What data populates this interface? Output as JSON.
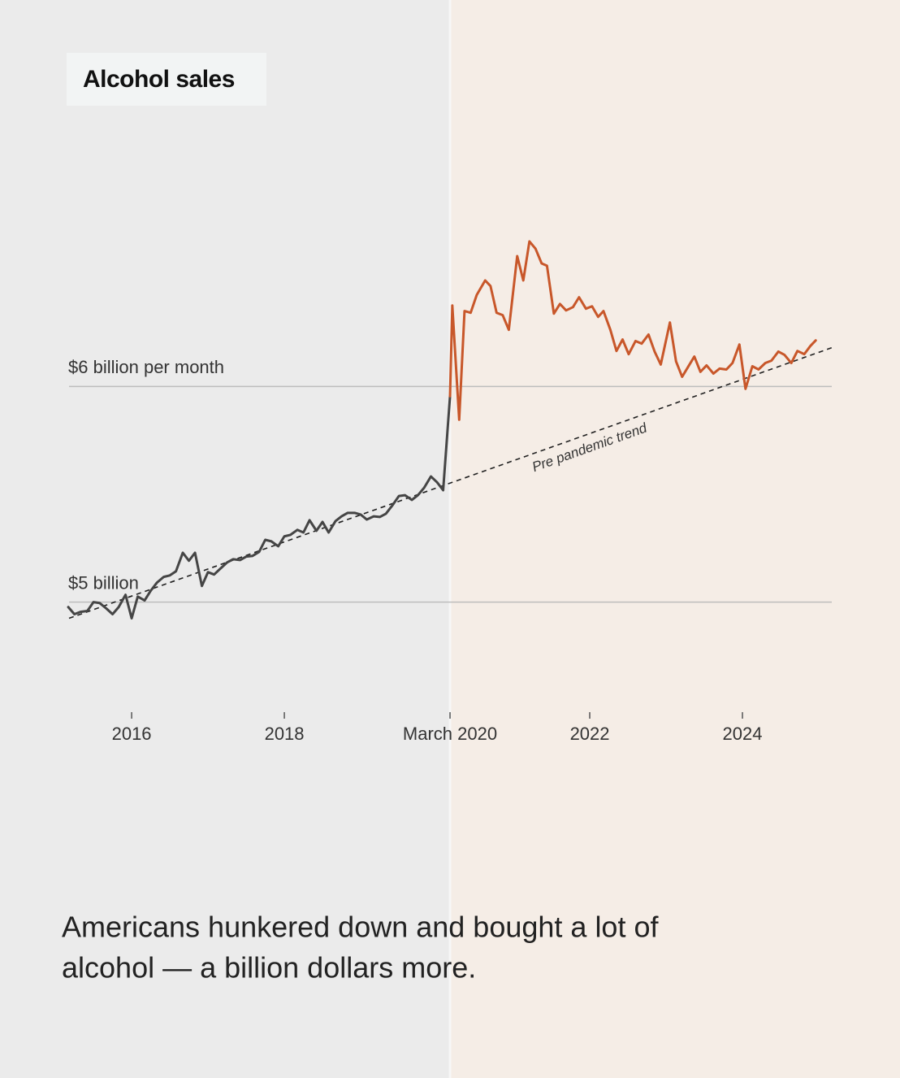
{
  "chart_data": {
    "type": "line",
    "title": "Alcohol sales",
    "caption_lines": [
      "Americans hunkered down and bought a lot of",
      "alcohol — a billion dollars more."
    ],
    "xlim": [
      2015.18,
      2025.17
    ],
    "ylim": [
      4.55,
      6.85
    ],
    "xticks": [
      2016,
      2018,
      {
        "value": 2020.17,
        "label": "March 2020"
      },
      2022,
      2024
    ],
    "yticks": [
      {
        "value": 5,
        "label": "$5 billion"
      },
      {
        "value": 6,
        "label": "$6 billion per month"
      }
    ],
    "grid": true,
    "background": "#ebebeb",
    "shade_color": "#f5ede6",
    "series": [
      {
        "color": "#454545",
        "x": [
          2015.17,
          2015.25,
          2015.33,
          2015.42,
          2015.5,
          2015.58,
          2015.67,
          2015.75,
          2015.83,
          2015.92,
          2016,
          2016.08,
          2016.17,
          2016.25,
          2016.33,
          2016.42,
          2016.5,
          2016.58,
          2016.67,
          2016.75,
          2016.83,
          2016.92,
          2017,
          2017.08,
          2017.17,
          2017.25,
          2017.33,
          2017.42,
          2017.5,
          2017.58,
          2017.67,
          2017.75,
          2017.83,
          2017.92,
          2018,
          2018.08,
          2018.17,
          2018.25,
          2018.33,
          2018.42,
          2018.5,
          2018.58,
          2018.67,
          2018.75,
          2018.83,
          2018.92,
          2019,
          2019.08,
          2019.17,
          2019.25,
          2019.33,
          2019.42,
          2019.5,
          2019.58,
          2019.67,
          2019.75,
          2019.83,
          2019.92,
          2020,
          2020.08,
          2020.17
        ],
        "values": [
          4.977,
          4.944,
          4.955,
          4.959,
          5.0,
          4.996,
          4.97,
          4.944,
          4.977,
          5.034,
          4.925,
          5.026,
          5.008,
          5.053,
          5.09,
          5.117,
          5.124,
          5.143,
          5.229,
          5.192,
          5.229,
          5.075,
          5.139,
          5.128,
          5.158,
          5.184,
          5.199,
          5.195,
          5.211,
          5.214,
          5.233,
          5.289,
          5.282,
          5.259,
          5.305,
          5.312,
          5.335,
          5.323,
          5.38,
          5.331,
          5.372,
          5.323,
          5.376,
          5.398,
          5.414,
          5.414,
          5.406,
          5.383,
          5.398,
          5.395,
          5.41,
          5.451,
          5.492,
          5.496,
          5.474,
          5.496,
          5.53,
          5.583,
          5.556,
          5.519,
          5.955
        ]
      },
      {
        "color": "#c8572a",
        "x": [
          2020.17,
          2020.2,
          2020.29,
          2020.36,
          2020.44,
          2020.52,
          2020.63,
          2020.7,
          2020.78,
          2020.86,
          2020.94,
          2021.05,
          2021.13,
          2021.21,
          2021.29,
          2021.37,
          2021.44,
          2021.53,
          2021.61,
          2021.69,
          2021.78,
          2021.86,
          2021.95,
          2022.03,
          2022.11,
          2022.18,
          2022.27,
          2022.35,
          2022.43,
          2022.51,
          2022.6,
          2022.68,
          2022.77,
          2022.85,
          2022.93,
          2023.05,
          2023.13,
          2023.21,
          2023.3,
          2023.37,
          2023.45,
          2023.53,
          2023.62,
          2023.7,
          2023.79,
          2023.87,
          2023.96,
          2024.04,
          2024.13,
          2024.21,
          2024.3,
          2024.38,
          2024.47,
          2024.55,
          2024.64,
          2024.72,
          2024.81,
          2024.89,
          2024.96
        ],
        "values": [
          5.955,
          6.376,
          5.846,
          6.35,
          6.342,
          6.425,
          6.492,
          6.466,
          6.342,
          6.331,
          6.263,
          6.605,
          6.492,
          6.673,
          6.639,
          6.571,
          6.56,
          6.338,
          6.383,
          6.353,
          6.368,
          6.414,
          6.361,
          6.372,
          6.323,
          6.35,
          6.263,
          6.165,
          6.218,
          6.15,
          6.211,
          6.199,
          6.241,
          6.162,
          6.102,
          6.297,
          6.117,
          6.045,
          6.098,
          6.139,
          6.068,
          6.098,
          6.06,
          6.083,
          6.079,
          6.109,
          6.195,
          5.989,
          6.094,
          6.079,
          6.109,
          6.12,
          6.162,
          6.147,
          6.109,
          6.165,
          6.15,
          6.188,
          6.214
        ]
      }
    ],
    "trend": {
      "label": "Pre pandemic trend",
      "x": [
        2015.18,
        2025.17
      ],
      "values": [
        4.925,
        6.18
      ],
      "color": "#222222"
    }
  }
}
